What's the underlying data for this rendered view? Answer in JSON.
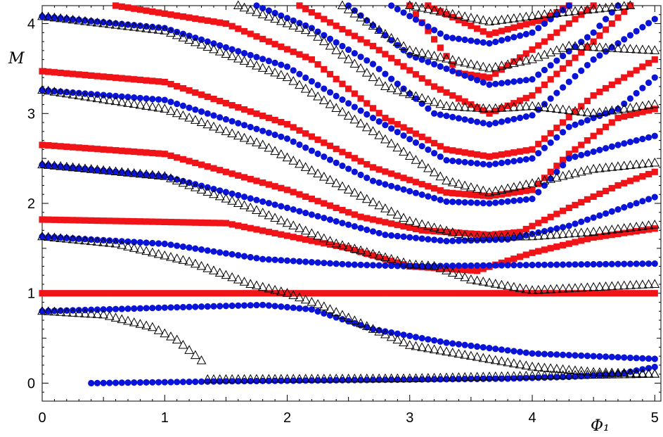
{
  "chart_data": {
    "type": "scatter",
    "title": "",
    "xlabel": "Φ₁",
    "ylabel": "M",
    "xlim": [
      0,
      5.05
    ],
    "ylim": [
      -0.2,
      4.2
    ],
    "xticks": [
      0,
      1,
      2,
      3,
      4,
      5
    ],
    "yticks": [
      0,
      1,
      2,
      3,
      4
    ],
    "grid": false,
    "legend": "none",
    "colors": {
      "circle": "#0a14d8",
      "square": "#f01418",
      "triangle_stroke": "#000000"
    },
    "series": [
      {
        "marker": "square",
        "points": [
          [
            0.0,
            1.0
          ],
          [
            5.0,
            1.0
          ]
        ]
      },
      {
        "marker": "square",
        "points": [
          [
            0.0,
            1.82
          ],
          [
            1.5,
            1.78
          ],
          [
            2.5,
            1.5
          ],
          [
            3.0,
            1.3
          ],
          [
            3.55,
            1.25
          ],
          [
            4.0,
            1.45
          ],
          [
            4.5,
            1.62
          ],
          [
            5.0,
            1.72
          ]
        ]
      },
      {
        "marker": "square",
        "points": [
          [
            0.0,
            2.65
          ],
          [
            1.0,
            2.55
          ],
          [
            2.0,
            2.15
          ],
          [
            2.6,
            1.85
          ],
          [
            3.1,
            1.7
          ],
          [
            3.65,
            1.65
          ],
          [
            3.9,
            1.68
          ],
          [
            4.3,
            1.95
          ],
          [
            4.7,
            2.2
          ],
          [
            5.0,
            2.35
          ]
        ]
      },
      {
        "marker": "square",
        "points": [
          [
            0.0,
            3.47
          ],
          [
            1.0,
            3.35
          ],
          [
            2.0,
            2.88
          ],
          [
            2.7,
            2.4
          ],
          [
            3.3,
            2.12
          ],
          [
            3.65,
            2.08
          ],
          [
            4.0,
            2.15
          ],
          [
            4.3,
            2.55
          ],
          [
            4.7,
            2.95
          ],
          [
            5.0,
            3.05
          ]
        ]
      },
      {
        "marker": "square",
        "points": [
          [
            0.6,
            4.2
          ],
          [
            1.5,
            4.0
          ],
          [
            2.2,
            3.6
          ],
          [
            2.8,
            2.95
          ],
          [
            3.3,
            2.6
          ],
          [
            3.65,
            2.52
          ],
          [
            4.0,
            2.6
          ],
          [
            4.5,
            3.2
          ],
          [
            5.0,
            3.6
          ]
        ]
      },
      {
        "marker": "square",
        "points": [
          [
            2.1,
            4.2
          ],
          [
            2.7,
            3.75
          ],
          [
            3.2,
            3.3
          ],
          [
            3.65,
            3.0
          ],
          [
            4.0,
            3.2
          ],
          [
            4.5,
            3.8
          ],
          [
            4.8,
            4.2
          ]
        ]
      },
      {
        "marker": "square",
        "points": [
          [
            3.0,
            4.2
          ],
          [
            3.4,
            3.45
          ],
          [
            3.65,
            3.4
          ],
          [
            4.1,
            3.8
          ],
          [
            4.5,
            4.2
          ]
        ]
      },
      {
        "marker": "square",
        "points": [
          [
            3.15,
            4.2
          ],
          [
            3.65,
            3.88
          ],
          [
            4.1,
            4.05
          ],
          [
            4.3,
            4.2
          ]
        ]
      },
      {
        "marker": "circle",
        "points": [
          [
            0.4,
            0.0
          ],
          [
            1.5,
            0.02
          ],
          [
            3.0,
            0.04
          ],
          [
            3.8,
            0.05
          ],
          [
            4.3,
            0.07
          ],
          [
            4.7,
            0.1
          ],
          [
            5.0,
            0.18
          ]
        ]
      },
      {
        "marker": "circle",
        "points": [
          [
            0.0,
            0.8
          ],
          [
            1.0,
            0.84
          ],
          [
            1.8,
            0.87
          ],
          [
            2.2,
            0.82
          ],
          [
            2.7,
            0.6
          ],
          [
            3.3,
            0.45
          ],
          [
            4.0,
            0.33
          ],
          [
            5.0,
            0.27
          ]
        ]
      },
      {
        "marker": "circle",
        "points": [
          [
            0.0,
            1.63
          ],
          [
            1.0,
            1.55
          ],
          [
            1.8,
            1.38
          ],
          [
            2.5,
            1.32
          ],
          [
            3.0,
            1.3
          ],
          [
            5.0,
            1.33
          ]
        ]
      },
      {
        "marker": "circle",
        "points": [
          [
            0.0,
            2.43
          ],
          [
            1.0,
            2.3
          ],
          [
            2.0,
            1.95
          ],
          [
            2.8,
            1.65
          ],
          [
            3.3,
            1.58
          ],
          [
            3.8,
            1.6
          ],
          [
            4.3,
            1.75
          ],
          [
            5.0,
            2.07
          ]
        ]
      },
      {
        "marker": "circle",
        "points": [
          [
            0.0,
            3.26
          ],
          [
            1.0,
            3.15
          ],
          [
            2.0,
            2.72
          ],
          [
            2.7,
            2.25
          ],
          [
            3.3,
            2.02
          ],
          [
            3.65,
            2.0
          ],
          [
            4.0,
            2.05
          ],
          [
            4.3,
            2.5
          ],
          [
            4.7,
            2.65
          ],
          [
            5.0,
            2.75
          ]
        ]
      },
      {
        "marker": "circle",
        "points": [
          [
            0.0,
            4.08
          ],
          [
            1.0,
            3.95
          ],
          [
            2.0,
            3.52
          ],
          [
            2.7,
            2.95
          ],
          [
            3.3,
            2.48
          ],
          [
            3.65,
            2.43
          ],
          [
            4.0,
            2.5
          ],
          [
            4.3,
            2.85
          ],
          [
            4.7,
            3.05
          ],
          [
            5.0,
            3.4
          ]
        ]
      },
      {
        "marker": "circle",
        "points": [
          [
            1.75,
            4.2
          ],
          [
            2.2,
            3.95
          ],
          [
            2.7,
            3.55
          ],
          [
            3.2,
            3.0
          ],
          [
            3.65,
            2.88
          ],
          [
            4.0,
            2.98
          ],
          [
            4.5,
            3.6
          ],
          [
            5.0,
            4.05
          ]
        ]
      },
      {
        "marker": "circle",
        "points": [
          [
            2.5,
            4.2
          ],
          [
            3.0,
            3.65
          ],
          [
            3.65,
            3.32
          ],
          [
            4.0,
            3.38
          ],
          [
            4.5,
            3.9
          ],
          [
            4.7,
            4.2
          ]
        ]
      },
      {
        "marker": "circle",
        "points": [
          [
            2.85,
            4.2
          ],
          [
            3.3,
            3.85
          ],
          [
            3.65,
            3.78
          ],
          [
            4.0,
            3.9
          ],
          [
            4.3,
            4.2
          ]
        ]
      },
      {
        "marker": "triangle",
        "points": [
          [
            0.0,
            0.8
          ],
          [
            0.5,
            0.76
          ],
          [
            0.9,
            0.62
          ],
          [
            1.1,
            0.48
          ],
          [
            1.3,
            0.25
          ]
        ]
      },
      {
        "marker": "triangle",
        "points": [
          [
            1.35,
            0.04
          ],
          [
            3.0,
            0.05
          ],
          [
            4.0,
            0.08
          ],
          [
            5.0,
            0.1
          ]
        ]
      },
      {
        "marker": "triangle",
        "points": [
          [
            0.0,
            1.63
          ],
          [
            0.6,
            1.55
          ],
          [
            1.2,
            1.35
          ],
          [
            1.7,
            1.1
          ],
          [
            2.0,
            1.0
          ],
          [
            2.3,
            0.85
          ],
          [
            2.7,
            0.6
          ],
          [
            3.0,
            0.42
          ],
          [
            3.5,
            0.3
          ],
          [
            4.0,
            0.18
          ],
          [
            4.5,
            0.12
          ],
          [
            5.0,
            0.1
          ]
        ]
      },
      {
        "marker": "triangle",
        "points": [
          [
            0.0,
            2.43
          ],
          [
            1.0,
            2.3
          ],
          [
            1.7,
            1.95
          ],
          [
            2.4,
            1.55
          ],
          [
            3.0,
            1.32
          ],
          [
            3.2,
            1.3
          ],
          [
            3.5,
            1.15
          ],
          [
            4.0,
            1.03
          ],
          [
            5.0,
            1.1
          ]
        ]
      },
      {
        "marker": "triangle",
        "points": [
          [
            0.0,
            3.26
          ],
          [
            1.0,
            3.05
          ],
          [
            1.8,
            2.65
          ],
          [
            2.5,
            2.15
          ],
          [
            3.0,
            1.8
          ],
          [
            3.5,
            1.62
          ],
          [
            4.0,
            1.63
          ],
          [
            4.5,
            1.68
          ],
          [
            5.0,
            1.76
          ]
        ]
      },
      {
        "marker": "triangle",
        "points": [
          [
            0.0,
            4.08
          ],
          [
            1.0,
            3.92
          ],
          [
            2.0,
            3.4
          ],
          [
            2.7,
            2.8
          ],
          [
            3.3,
            2.25
          ],
          [
            3.65,
            2.12
          ],
          [
            4.0,
            2.22
          ],
          [
            4.5,
            2.38
          ],
          [
            5.0,
            2.45
          ]
        ]
      },
      {
        "marker": "triangle",
        "points": [
          [
            1.6,
            4.2
          ],
          [
            2.2,
            3.9
          ],
          [
            2.8,
            3.3
          ],
          [
            3.3,
            3.08
          ],
          [
            3.65,
            3.05
          ],
          [
            4.0,
            3.08
          ],
          [
            4.5,
            3.0
          ],
          [
            5.0,
            3.1
          ]
        ]
      },
      {
        "marker": "triangle",
        "points": [
          [
            2.45,
            4.2
          ],
          [
            3.0,
            3.7
          ],
          [
            3.65,
            3.5
          ],
          [
            4.0,
            3.6
          ],
          [
            4.3,
            3.75
          ],
          [
            5.0,
            3.7
          ]
        ]
      },
      {
        "marker": "triangle",
        "points": [
          [
            3.0,
            4.2
          ],
          [
            3.65,
            4.02
          ],
          [
            4.1,
            4.1
          ],
          [
            4.8,
            4.2
          ]
        ]
      }
    ]
  }
}
